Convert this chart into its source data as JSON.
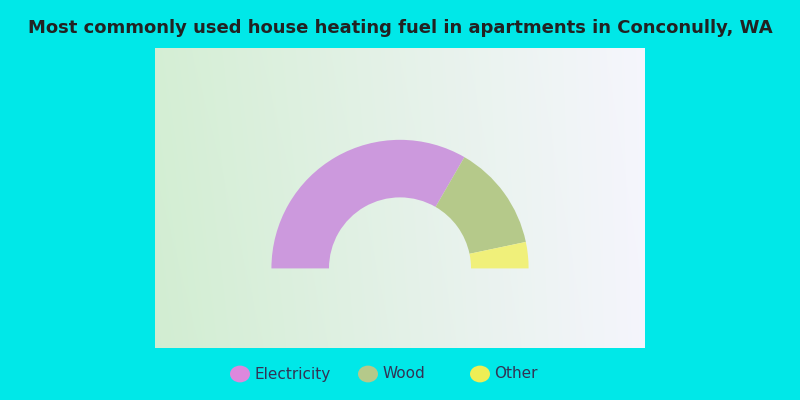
{
  "title": "Most commonly used house heating fuel in apartments in Conconully, WA",
  "categories": [
    "Electricity",
    "Wood",
    "Other"
  ],
  "values": [
    66.7,
    26.7,
    6.6
  ],
  "colors": [
    "#cc99dd",
    "#b5c98a",
    "#f0f07a"
  ],
  "legend_colors": [
    "#dd88dd",
    "#b5c98a",
    "#eeee55"
  ],
  "title_color": "#222222",
  "title_fontsize": 13,
  "legend_fontsize": 11,
  "cyan": "#00e8e8",
  "outer_r": 1.05,
  "inner_r": 0.58
}
